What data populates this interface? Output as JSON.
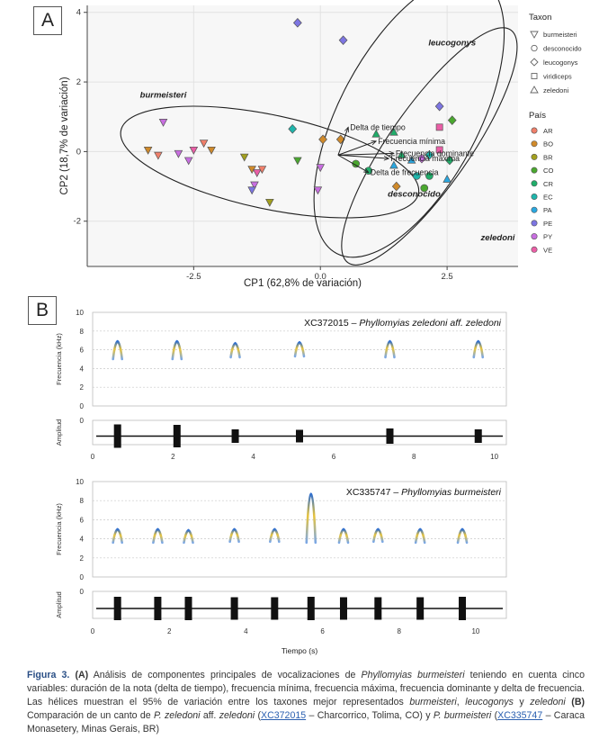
{
  "panel_a": {
    "label": "A",
    "chart_data": {
      "type": "scatter",
      "xlabel": "CP1 (62,8% de variación)",
      "ylabel": "CP2 (18,7% de variación)",
      "xlim": [
        -4.6,
        3.9
      ],
      "ylim": [
        -3.3,
        4.2
      ],
      "xticks": [
        -2.5,
        0.0,
        2.5
      ],
      "xtick_labels": [
        "-2.5",
        "0.0",
        "2.5"
      ],
      "yticks": [
        -2,
        0,
        2,
        4
      ],
      "ytick_labels": [
        "-2",
        "0",
        "2",
        "4"
      ],
      "grid": true,
      "legend_taxon_title": "Taxon",
      "legend_taxon": [
        {
          "name": "burmeisteri",
          "shape": "triangle-down"
        },
        {
          "name": "desconocido",
          "shape": "circle"
        },
        {
          "name": "leucogonys",
          "shape": "diamond"
        },
        {
          "name": "viridiceps",
          "shape": "square"
        },
        {
          "name": "zeledoni",
          "shape": "triangle-up"
        }
      ],
      "legend_pais_title": "País",
      "legend_pais": [
        {
          "name": "AR",
          "color": "#f07f6a"
        },
        {
          "name": "BO",
          "color": "#d08a2a"
        },
        {
          "name": "BR",
          "color": "#a3a01e"
        },
        {
          "name": "CO",
          "color": "#4aa82f"
        },
        {
          "name": "CR",
          "color": "#20ad6a"
        },
        {
          "name": "EC",
          "color": "#1fb6ac"
        },
        {
          "name": "PA",
          "color": "#2aa7df"
        },
        {
          "name": "PE",
          "color": "#7d75e2"
        },
        {
          "name": "PY",
          "color": "#c86ee0"
        },
        {
          "name": "VE",
          "color": "#ea5ea6"
        }
      ],
      "groups": [
        {
          "name": "burmeisteri",
          "label_at": [
            -3.1,
            1.55
          ]
        },
        {
          "name": "leucogonys",
          "label_at": [
            2.6,
            3.05
          ]
        },
        {
          "name": "desconocido",
          "label_at": [
            1.85,
            -1.3
          ]
        },
        {
          "name": "zeledoni",
          "label_at": [
            3.5,
            -2.55
          ]
        }
      ],
      "ellipses": [
        {
          "group": "burmeisteri",
          "cx": -1.0,
          "cy": -0.3,
          "rx": 3.0,
          "ry": 1.35,
          "angle": 12
        },
        {
          "group": "leucogonys",
          "cx": 1.75,
          "cy": 1.0,
          "rx": 3.05,
          "ry": 2.0,
          "angle": -62
        },
        {
          "group": "zeledoni",
          "cx": 2.15,
          "cy": 0.15,
          "rx": 2.8,
          "ry": 1.15,
          "angle": -55
        }
      ],
      "vectors": [
        {
          "label": "Delta de tiempo",
          "x": 0.55,
          "y": 0.7
        },
        {
          "label": "Frecuencia mínima",
          "x": 1.1,
          "y": 0.3
        },
        {
          "label": "Frecuencia dominante",
          "x": 1.45,
          "y": -0.05
        },
        {
          "label": "Frecuencia máxima",
          "x": 1.35,
          "y": -0.2
        },
        {
          "label": "Delta de frecuencia",
          "x": 0.95,
          "y": -0.6
        }
      ],
      "points": [
        {
          "x": -3.1,
          "y": 0.85,
          "shape": "triangle-down",
          "pais": "PY"
        },
        {
          "x": -3.4,
          "y": 0.05,
          "shape": "triangle-down",
          "pais": "BO"
        },
        {
          "x": -3.2,
          "y": -0.1,
          "shape": "triangle-down",
          "pais": "AR"
        },
        {
          "x": -2.8,
          "y": -0.05,
          "shape": "triangle-down",
          "pais": "PY"
        },
        {
          "x": -2.6,
          "y": -0.25,
          "shape": "triangle-down",
          "pais": "PY"
        },
        {
          "x": -2.5,
          "y": 0.05,
          "shape": "triangle-down",
          "pais": "VE"
        },
        {
          "x": -2.3,
          "y": 0.25,
          "shape": "triangle-down",
          "pais": "AR"
        },
        {
          "x": -2.15,
          "y": 0.05,
          "shape": "triangle-down",
          "pais": "BO"
        },
        {
          "x": -1.5,
          "y": -0.15,
          "shape": "triangle-down",
          "pais": "BR"
        },
        {
          "x": -1.35,
          "y": -0.5,
          "shape": "triangle-down",
          "pais": "BO"
        },
        {
          "x": -1.25,
          "y": -0.6,
          "shape": "triangle-down",
          "pais": "VE"
        },
        {
          "x": -1.15,
          "y": -0.5,
          "shape": "triangle-down",
          "pais": "AR"
        },
        {
          "x": -1.3,
          "y": -0.95,
          "shape": "triangle-down",
          "pais": "PY"
        },
        {
          "x": -1.35,
          "y": -1.1,
          "shape": "triangle-down",
          "pais": "PE"
        },
        {
          "x": -1.0,
          "y": -1.45,
          "shape": "triangle-down",
          "pais": "BR"
        },
        {
          "x": -0.45,
          "y": -0.25,
          "shape": "triangle-down",
          "pais": "CO"
        },
        {
          "x": 0.0,
          "y": -0.45,
          "shape": "triangle-down",
          "pais": "PY"
        },
        {
          "x": -0.05,
          "y": -1.1,
          "shape": "triangle-down",
          "pais": "PY"
        },
        {
          "x": -0.45,
          "y": 3.7,
          "shape": "diamond",
          "pais": "PE"
        },
        {
          "x": 0.45,
          "y": 3.2,
          "shape": "diamond",
          "pais": "PE"
        },
        {
          "x": -0.55,
          "y": 0.65,
          "shape": "diamond",
          "pais": "EC"
        },
        {
          "x": 0.05,
          "y": 0.35,
          "shape": "diamond",
          "pais": "BO"
        },
        {
          "x": 0.4,
          "y": 0.35,
          "shape": "diamond",
          "pais": "BO"
        },
        {
          "x": 2.35,
          "y": 1.3,
          "shape": "diamond",
          "pais": "PE"
        },
        {
          "x": 2.6,
          "y": 0.9,
          "shape": "diamond",
          "pais": "CO"
        },
        {
          "x": 1.5,
          "y": -1.0,
          "shape": "diamond",
          "pais": "BO"
        },
        {
          "x": 2.55,
          "y": -0.25,
          "shape": "diamond",
          "pais": "CR"
        },
        {
          "x": 2.15,
          "y": -0.1,
          "shape": "diamond",
          "pais": "EC"
        },
        {
          "x": 2.0,
          "y": -0.2,
          "shape": "diamond",
          "pais": "PY"
        },
        {
          "x": 2.35,
          "y": 0.7,
          "shape": "square",
          "pais": "VE"
        },
        {
          "x": 2.35,
          "y": 0.05,
          "shape": "square",
          "pais": "VE"
        },
        {
          "x": 1.6,
          "y": -0.1,
          "shape": "triangle-up",
          "pais": "CR"
        },
        {
          "x": 1.8,
          "y": -0.25,
          "shape": "triangle-up",
          "pais": "PA"
        },
        {
          "x": 1.45,
          "y": -0.4,
          "shape": "triangle-up",
          "pais": "PA"
        },
        {
          "x": 2.5,
          "y": -0.8,
          "shape": "triangle-up",
          "pais": "PA"
        },
        {
          "x": 1.1,
          "y": 0.5,
          "shape": "triangle-up",
          "pais": "CR"
        },
        {
          "x": 1.45,
          "y": 0.55,
          "shape": "triangle-up",
          "pais": "CR"
        },
        {
          "x": 2.05,
          "y": -1.05,
          "shape": "circle",
          "pais": "CO"
        },
        {
          "x": 1.9,
          "y": -0.7,
          "shape": "circle",
          "pais": "EC"
        },
        {
          "x": 2.15,
          "y": -0.7,
          "shape": "circle",
          "pais": "CR"
        },
        {
          "x": 0.95,
          "y": -0.55,
          "shape": "circle",
          "pais": "CR"
        },
        {
          "x": 0.7,
          "y": -0.35,
          "shape": "circle",
          "pais": "CO"
        }
      ]
    }
  },
  "panel_b": {
    "label": "B",
    "chart_data": [
      {
        "type": "spectrogram",
        "title_id": "XC372015",
        "title_sep": " – ",
        "title_species": "Phyllomyias zeledoni aff. zeledoni",
        "ylabel_freq": "Frecuencia (kHz)",
        "ylabel_amp": "Amplitud",
        "xlim": [
          0,
          10.3
        ],
        "freq_ylim": [
          0,
          10
        ],
        "freq_ticks": [
          0,
          2,
          4,
          6,
          8,
          10
        ],
        "amp_tick": "0",
        "xticks": [
          0,
          2,
          4,
          6,
          8,
          10
        ],
        "notes": [
          {
            "t": 0.62,
            "fmin": 5.0,
            "fmax": 6.9,
            "amp": 1.0
          },
          {
            "t": 2.1,
            "fmin": 5.0,
            "fmax": 6.9,
            "amp": 0.95
          },
          {
            "t": 3.55,
            "fmin": 5.2,
            "fmax": 6.7,
            "amp": 0.45
          },
          {
            "t": 5.15,
            "fmin": 5.3,
            "fmax": 6.8,
            "amp": 0.4
          },
          {
            "t": 7.4,
            "fmin": 5.2,
            "fmax": 6.9,
            "amp": 0.55
          },
          {
            "t": 9.6,
            "fmin": 5.2,
            "fmax": 6.9,
            "amp": 0.45
          }
        ]
      },
      {
        "type": "spectrogram",
        "title_id": "XC335747",
        "title_sep": " – ",
        "title_species": "Phyllomyias burmeisteri",
        "ylabel_freq": "Frecuencia (kHz)",
        "ylabel_amp": "Amplitud",
        "xlabel": "Tiempo (s)",
        "xlim": [
          0,
          10.8
        ],
        "freq_ylim": [
          0,
          10
        ],
        "freq_ticks": [
          0,
          2,
          4,
          6,
          8,
          10
        ],
        "amp_tick": "0",
        "xticks": [
          0,
          2,
          4,
          6,
          8,
          10
        ],
        "notes": [
          {
            "t": 0.65,
            "fmin": 3.6,
            "fmax": 5.0,
            "amp": 1.0
          },
          {
            "t": 1.7,
            "fmin": 3.6,
            "fmax": 5.0,
            "amp": 1.0
          },
          {
            "t": 2.5,
            "fmin": 3.6,
            "fmax": 4.9,
            "amp": 1.0
          },
          {
            "t": 3.7,
            "fmin": 3.7,
            "fmax": 5.0,
            "amp": 0.95
          },
          {
            "t": 4.75,
            "fmin": 3.7,
            "fmax": 5.0,
            "amp": 0.95
          },
          {
            "t": 5.7,
            "fmin": 3.6,
            "fmax": 8.7,
            "amp": 1.0
          },
          {
            "t": 6.55,
            "fmin": 3.6,
            "fmax": 5.0,
            "amp": 0.95
          },
          {
            "t": 7.45,
            "fmin": 3.7,
            "fmax": 5.0,
            "amp": 0.95
          },
          {
            "t": 8.55,
            "fmin": 3.6,
            "fmax": 5.0,
            "amp": 0.95
          },
          {
            "t": 9.65,
            "fmin": 3.6,
            "fmax": 5.0,
            "amp": 1.0
          }
        ]
      }
    ]
  },
  "caption": {
    "fig_label": "Figura 3.",
    "part_a": "(A)",
    "t1": " Análisis de componentes principales de vocalizaciones de ",
    "sp1": "Phyllomyias burmeisteri",
    "t2": " teniendo en cuenta cinco variables: duración de la nota (delta de tiempo), frecuencia mínima, frecuencia máxima, frecuencia dominante y delta de frecuencia. Las hélices muestran el 95% de variación entre los taxones mejor representados ",
    "sp2": "burmeisteri",
    "t3": ", ",
    "sp3": "leucogonys",
    "t4": " y ",
    "sp4": "zeledoni",
    "t5": " ",
    "part_b": "(B)",
    "t6": " Comparación de un canto de ",
    "sp5": "P. zeledoni",
    "t7": " aff. ",
    "sp6": "zeledoni",
    "t8": " (",
    "link1": "XC372015",
    "t9": " – Charcorrico, Tolima, CO) y ",
    "sp7": "P. burmeisteri",
    "t10": " (",
    "link2": "XC335747",
    "t11": " – Caraca Monasetery, Minas Gerais, BR)"
  }
}
